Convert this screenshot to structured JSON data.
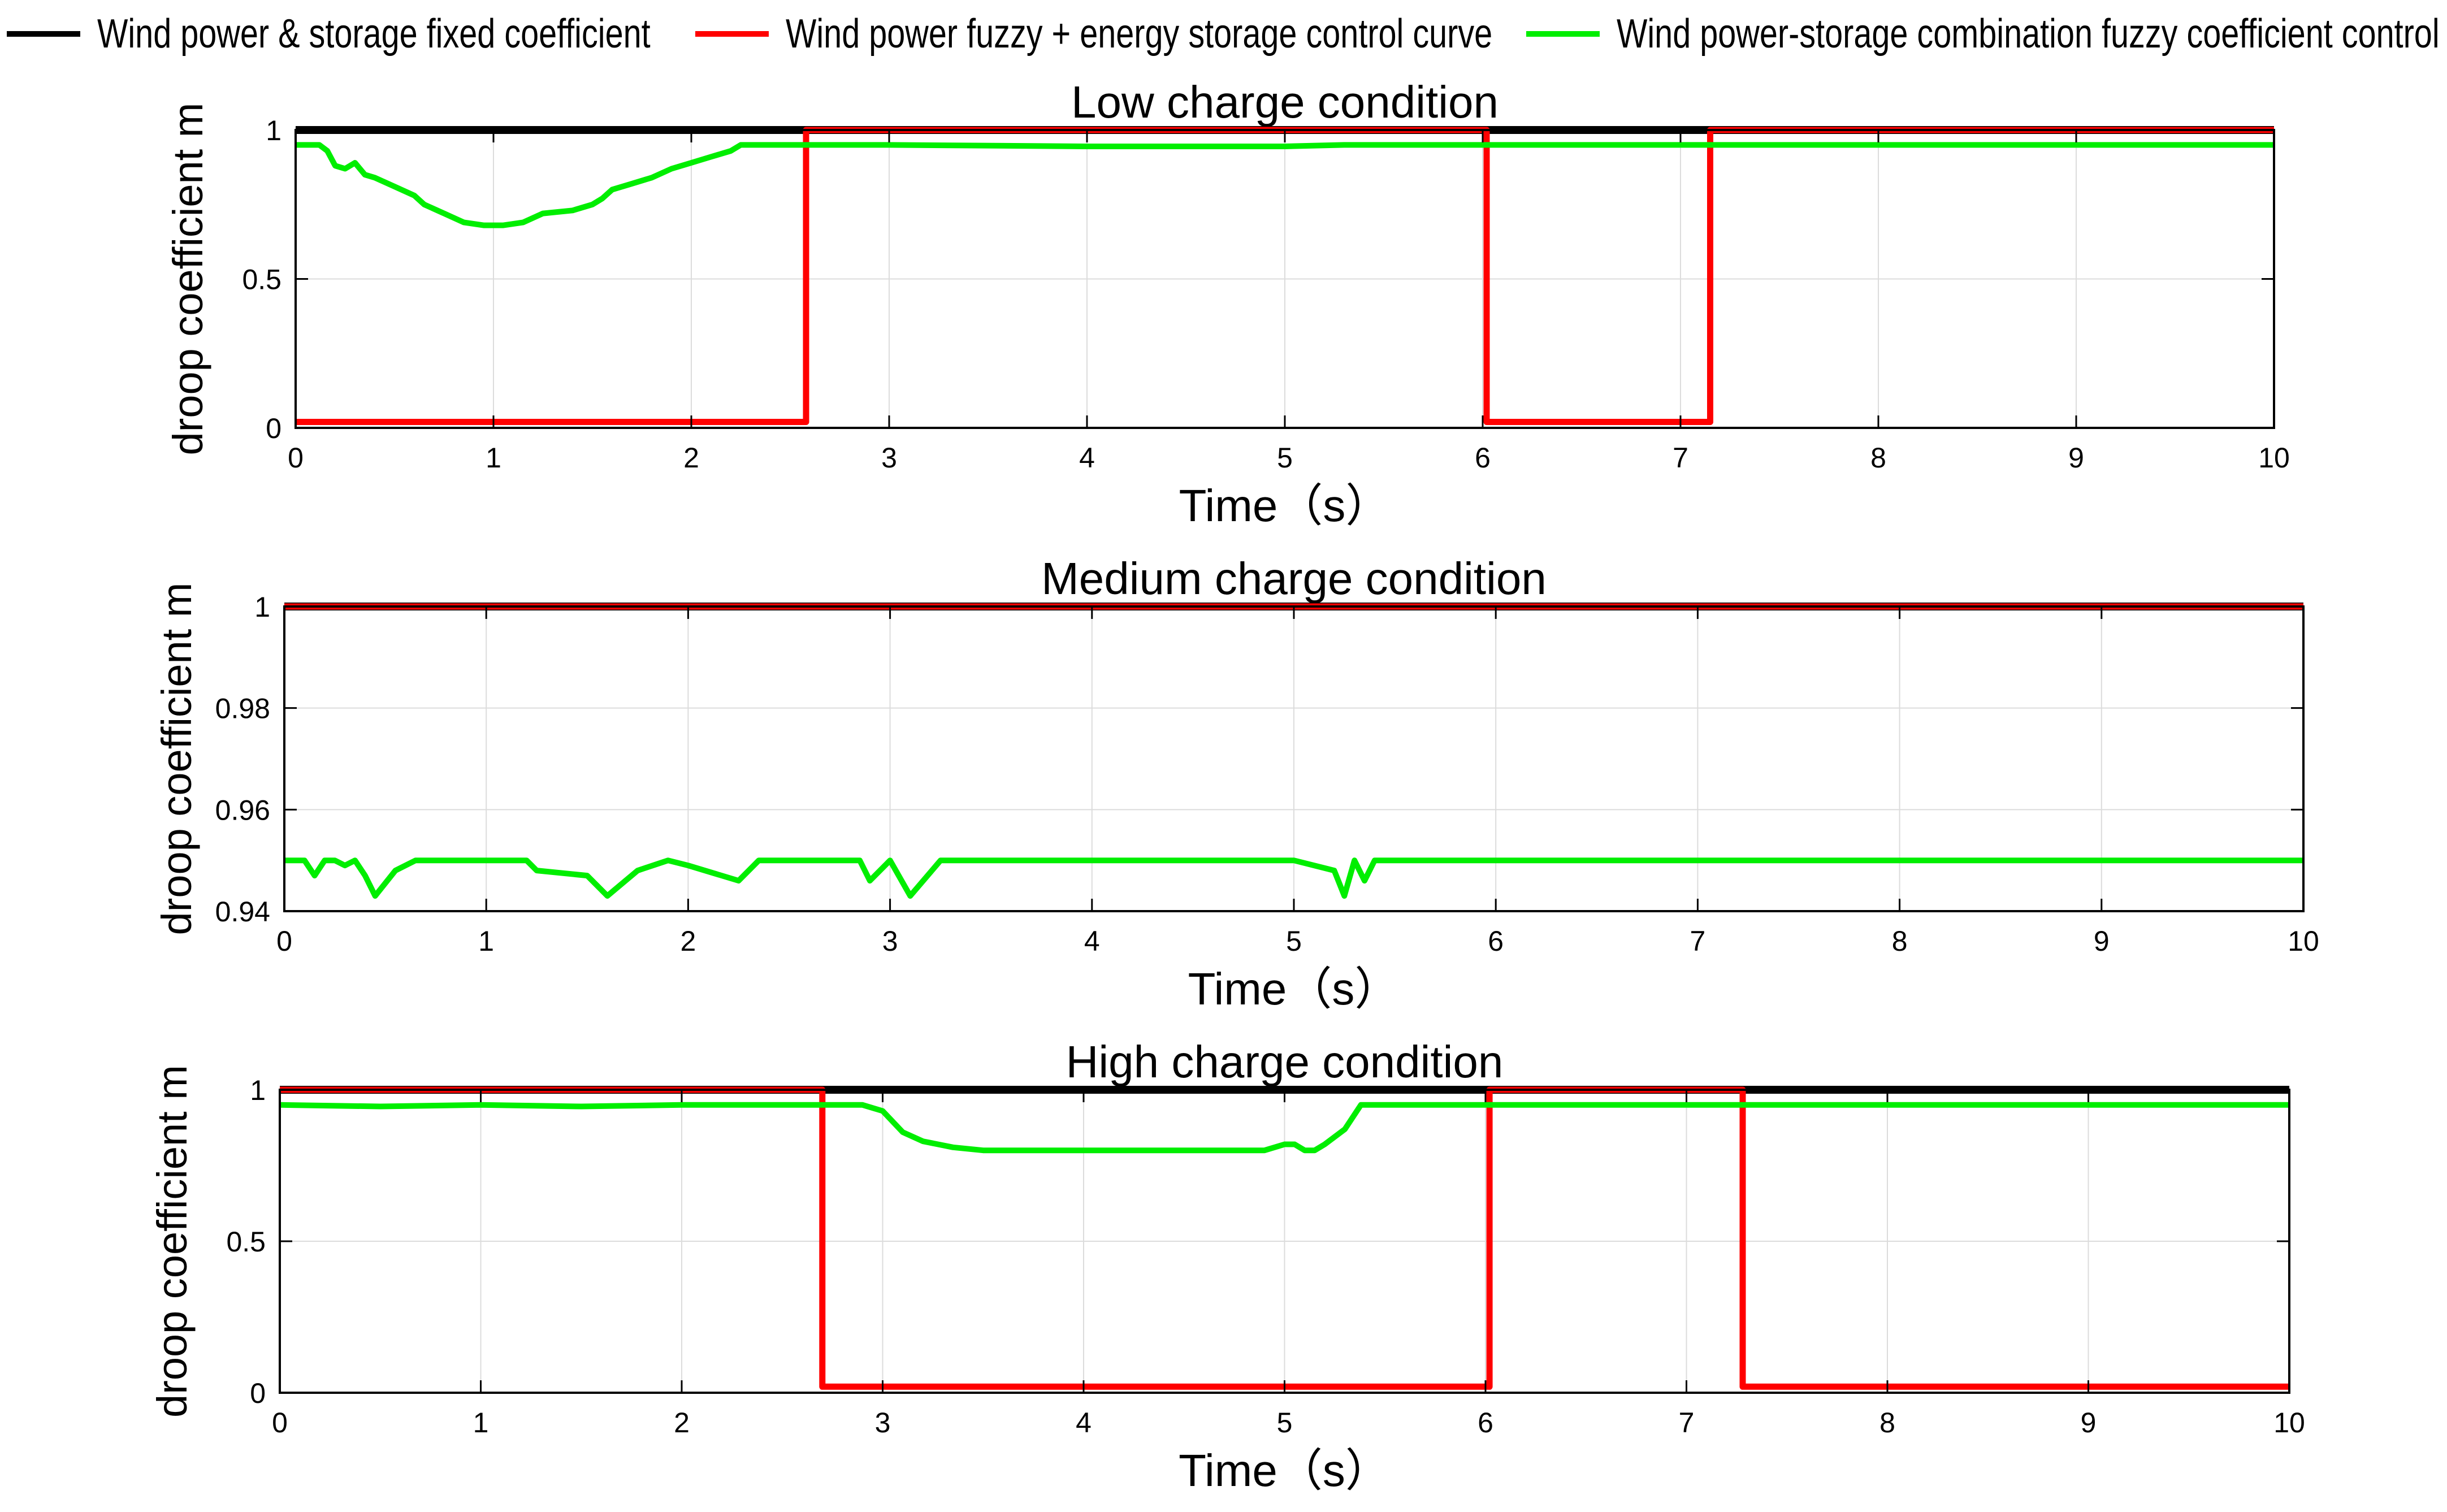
{
  "legend": {
    "items": [
      {
        "label": "Wind power & storage fixed coefficient",
        "color": "#000000"
      },
      {
        "label": "Wind power fuzzy + energy storage control curve",
        "color": "#ff0000"
      },
      {
        "label": "Wind power-storage combination fuzzy coefficient control",
        "color": "#00ee00"
      }
    ]
  },
  "chart_data": [
    {
      "type": "line",
      "title": "Low charge condition",
      "xlabel": "Time（s）",
      "ylabel": "droop coefficient m",
      "xlim": [
        0,
        10
      ],
      "ylim": [
        0,
        1
      ],
      "xticks": [
        0,
        1,
        2,
        3,
        4,
        5,
        6,
        7,
        8,
        9,
        10
      ],
      "yticks": [
        0,
        0.5,
        1
      ],
      "ytick_labels": [
        "0",
        "0.5",
        "1"
      ],
      "grid": true,
      "series": [
        {
          "name": "Wind power & storage fixed coefficient",
          "color": "#000000",
          "x": [
            0,
            10
          ],
          "y": [
            1,
            1
          ]
        },
        {
          "name": "Wind power fuzzy + energy storage control curve",
          "color": "#ff0000",
          "x": [
            0,
            2.58,
            2.58,
            6.02,
            6.02,
            7.15,
            7.15,
            10
          ],
          "y": [
            0.02,
            0.02,
            1,
            1,
            0.02,
            0.02,
            1,
            1
          ]
        },
        {
          "name": "Wind power-storage combination fuzzy coefficient control",
          "color": "#00ee00",
          "x": [
            0,
            0.12,
            0.16,
            0.2,
            0.25,
            0.3,
            0.35,
            0.4,
            0.5,
            0.6,
            0.65,
            0.75,
            0.85,
            0.95,
            1.05,
            1.15,
            1.25,
            1.4,
            1.5,
            1.55,
            1.6,
            1.7,
            1.8,
            1.9,
            2.0,
            2.1,
            2.2,
            2.25,
            2.5,
            3.0,
            4.0,
            5.0,
            5.3,
            6.0,
            7.0,
            8.0,
            9.0,
            10.0
          ],
          "y": [
            0.95,
            0.95,
            0.93,
            0.88,
            0.87,
            0.89,
            0.85,
            0.84,
            0.81,
            0.78,
            0.75,
            0.72,
            0.69,
            0.68,
            0.68,
            0.69,
            0.72,
            0.73,
            0.75,
            0.77,
            0.8,
            0.82,
            0.84,
            0.87,
            0.89,
            0.91,
            0.93,
            0.95,
            0.95,
            0.95,
            0.945,
            0.945,
            0.95,
            0.95,
            0.95,
            0.95,
            0.95,
            0.95
          ]
        }
      ]
    },
    {
      "type": "line",
      "title": "Medium charge condition",
      "xlabel": "Time（s）",
      "ylabel": "droop coefficient m",
      "xlim": [
        0,
        10
      ],
      "ylim": [
        0.94,
        1
      ],
      "xticks": [
        0,
        1,
        2,
        3,
        4,
        5,
        6,
        7,
        8,
        9,
        10
      ],
      "yticks": [
        0.94,
        0.96,
        0.98,
        1
      ],
      "ytick_labels": [
        "0.94",
        "0.96",
        "0.98",
        "1"
      ],
      "grid": true,
      "series": [
        {
          "name": "Wind power & storage fixed coefficient",
          "color": "#000000",
          "x": [
            0,
            10
          ],
          "y": [
            1,
            1
          ]
        },
        {
          "name": "Wind power fuzzy + energy storage control curve",
          "color": "#ff0000",
          "x": [
            0,
            10
          ],
          "y": [
            1,
            1
          ]
        },
        {
          "name": "Wind power-storage combination fuzzy coefficient control",
          "color": "#00ee00",
          "x": [
            0,
            0.1,
            0.15,
            0.2,
            0.25,
            0.3,
            0.35,
            0.4,
            0.45,
            0.55,
            0.65,
            1.2,
            1.25,
            1.5,
            1.6,
            1.75,
            1.9,
            2.0,
            2.25,
            2.35,
            2.85,
            2.9,
            3.0,
            3.1,
            3.25,
            5.0,
            5.2,
            5.25,
            5.3,
            5.35,
            5.4,
            10.0
          ],
          "y": [
            0.95,
            0.95,
            0.947,
            0.95,
            0.95,
            0.949,
            0.95,
            0.947,
            0.943,
            0.948,
            0.95,
            0.95,
            0.948,
            0.947,
            0.943,
            0.948,
            0.95,
            0.949,
            0.946,
            0.95,
            0.95,
            0.946,
            0.95,
            0.943,
            0.95,
            0.95,
            0.948,
            0.943,
            0.95,
            0.946,
            0.95,
            0.95
          ]
        }
      ]
    },
    {
      "type": "line",
      "title": "High charge condition",
      "xlabel": "Time（s）",
      "ylabel": "droop coefficient m",
      "xlim": [
        0,
        10
      ],
      "ylim": [
        0,
        1
      ],
      "xticks": [
        0,
        1,
        2,
        3,
        4,
        5,
        6,
        7,
        8,
        9,
        10
      ],
      "yticks": [
        0,
        0.5,
        1
      ],
      "ytick_labels": [
        "0",
        "0.5",
        "1"
      ],
      "grid": true,
      "series": [
        {
          "name": "Wind power & storage fixed coefficient",
          "color": "#000000",
          "x": [
            0,
            10
          ],
          "y": [
            1,
            1
          ]
        },
        {
          "name": "Wind power fuzzy + energy storage control curve",
          "color": "#ff0000",
          "x": [
            0,
            2.7,
            2.7,
            6.02,
            6.02,
            7.28,
            7.28,
            10
          ],
          "y": [
            1,
            1,
            0.02,
            0.02,
            1,
            1,
            0.02,
            0.02
          ]
        },
        {
          "name": "Wind power-storage combination fuzzy coefficient control",
          "color": "#00ee00",
          "x": [
            0,
            0.5,
            1.0,
            1.5,
            2.0,
            2.5,
            2.9,
            3.0,
            3.1,
            3.2,
            3.35,
            3.5,
            4.0,
            4.5,
            4.9,
            5.0,
            5.05,
            5.1,
            5.15,
            5.2,
            5.3,
            5.38,
            5.4,
            6.0,
            7.0,
            8.0,
            9.0,
            10.0
          ],
          "y": [
            0.95,
            0.945,
            0.95,
            0.945,
            0.95,
            0.95,
            0.95,
            0.93,
            0.86,
            0.83,
            0.81,
            0.8,
            0.8,
            0.8,
            0.8,
            0.82,
            0.82,
            0.8,
            0.8,
            0.82,
            0.87,
            0.95,
            0.95,
            0.95,
            0.95,
            0.95,
            0.95,
            0.95
          ]
        }
      ]
    }
  ]
}
